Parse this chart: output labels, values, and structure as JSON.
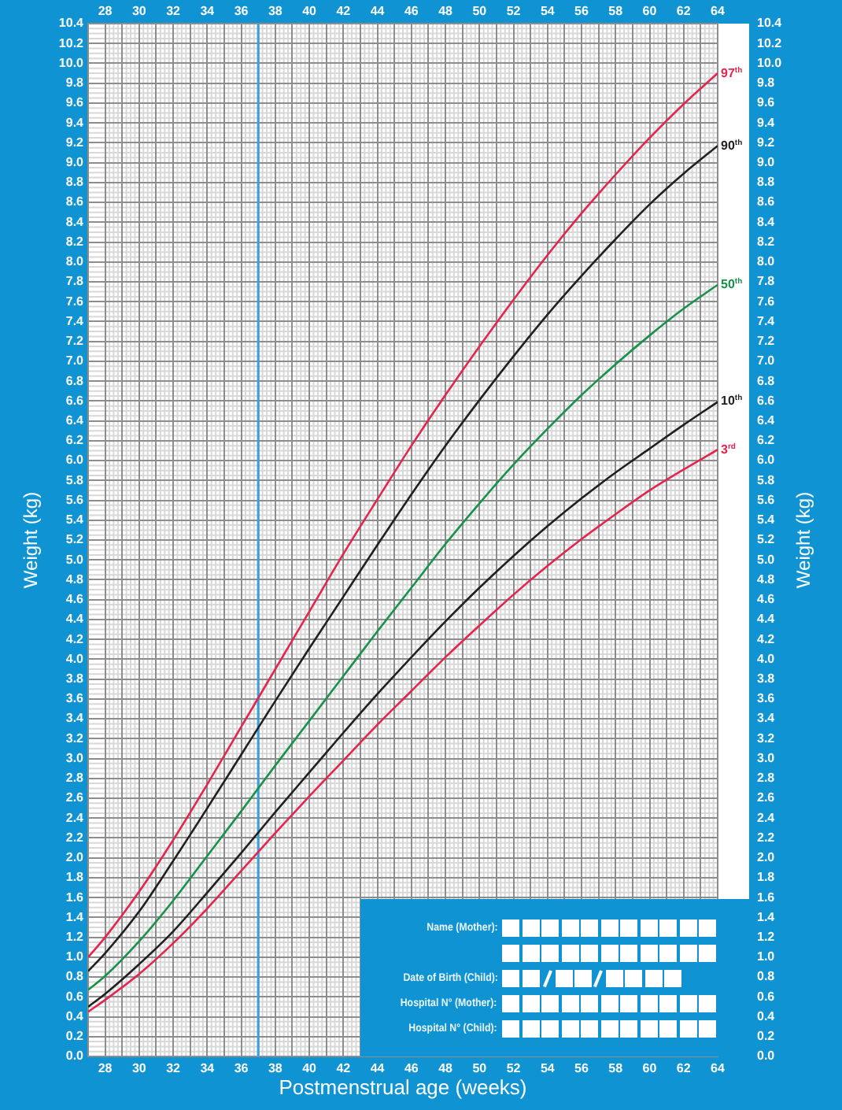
{
  "chart_data": {
    "type": "line",
    "xlabel": "Postmenstrual age (weeks)",
    "ylabel": "Weight (kg)",
    "y2label": "Weight (kg)",
    "x": [
      27,
      28,
      30,
      32,
      34,
      36,
      38,
      40,
      42,
      44,
      46,
      48,
      50,
      52,
      54,
      56,
      58,
      60,
      62,
      64
    ],
    "series": [
      {
        "name": "97$^{th}$",
        "color": "#e4254e",
        "values": [
          1.0,
          1.2,
          1.66,
          2.18,
          2.74,
          3.32,
          3.9,
          4.48,
          5.06,
          5.61,
          6.15,
          6.66,
          7.15,
          7.62,
          8.07,
          8.49,
          8.88,
          9.25,
          9.59,
          9.9
        ]
      },
      {
        "name": "90$^{th}$",
        "color": "#231f20",
        "values": [
          0.86,
          1.04,
          1.46,
          1.97,
          2.5,
          3.04,
          3.58,
          4.11,
          4.63,
          5.15,
          5.66,
          6.15,
          6.61,
          7.05,
          7.47,
          7.86,
          8.23,
          8.58,
          8.89,
          9.17
        ]
      },
      {
        "name": "50$^{th}$",
        "color": "#17924a",
        "values": [
          0.67,
          0.81,
          1.16,
          1.57,
          2.02,
          2.47,
          2.93,
          3.38,
          3.83,
          4.28,
          4.72,
          5.16,
          5.57,
          5.96,
          6.32,
          6.66,
          6.97,
          7.26,
          7.53,
          7.77
        ]
      },
      {
        "name": "10$^{th}$",
        "color": "#231f20",
        "values": [
          0.5,
          0.63,
          0.93,
          1.26,
          1.65,
          2.05,
          2.46,
          2.86,
          3.26,
          3.65,
          4.02,
          4.38,
          4.72,
          5.04,
          5.34,
          5.62,
          5.88,
          6.12,
          6.36,
          6.59
        ]
      },
      {
        "name": "3$^{rd}$",
        "color": "#e4254e",
        "values": [
          0.45,
          0.57,
          0.83,
          1.14,
          1.49,
          1.87,
          2.25,
          2.62,
          2.98,
          3.34,
          3.68,
          4.02,
          4.34,
          4.65,
          4.94,
          5.21,
          5.46,
          5.7,
          5.91,
          6.11
        ]
      }
    ],
    "xlim": [
      27,
      64
    ],
    "xticks": [
      28,
      {
        "value": 29,
        "label": null
      },
      30,
      {
        "value": 31,
        "label": null
      },
      32,
      {
        "value": 33,
        "label": null
      },
      34,
      {
        "value": 35,
        "label": null
      },
      36,
      {
        "value": 37,
        "label": null
      },
      38,
      {
        "value": 39,
        "label": null
      },
      40,
      {
        "value": 41,
        "label": null
      },
      42,
      {
        "value": 43,
        "label": null
      },
      44,
      {
        "value": 45,
        "label": null
      },
      46,
      {
        "value": 47,
        "label": null
      },
      48,
      {
        "value": 49,
        "label": null
      },
      50,
      {
        "value": 51,
        "label": null
      },
      52,
      {
        "value": 53,
        "label": null
      },
      54,
      {
        "value": 55,
        "label": null
      },
      56,
      {
        "value": 57,
        "label": null
      },
      58,
      {
        "value": 59,
        "label": null
      },
      60,
      {
        "value": 61,
        "label": null
      },
      62,
      {
        "value": 63,
        "label": null
      },
      64
    ],
    "x2lim": [
      27,
      64
    ],
    "x2ticks": [
      28,
      30,
      32,
      34,
      36,
      38,
      40,
      42,
      44,
      46,
      48,
      50,
      52,
      54,
      56,
      58,
      60,
      62,
      64
    ],
    "ylim": [
      0,
      10.4
    ],
    "yticks": [
      {
        "value": 0,
        "label": "0.0"
      },
      0.2,
      0.4,
      0.6,
      0.8,
      {
        "value": 1,
        "label": "1.0"
      },
      1.2,
      1.4,
      1.6,
      1.8,
      {
        "value": 2,
        "label": "2.0"
      },
      2.2,
      2.4,
      2.6,
      2.8,
      {
        "value": 3,
        "label": "3.0"
      },
      3.2,
      3.4,
      3.6,
      3.8,
      {
        "value": 4,
        "label": "4.0"
      },
      4.2,
      4.4,
      4.6,
      4.8,
      {
        "value": 5,
        "label": "5.0"
      },
      5.2,
      5.4,
      5.6,
      5.8,
      {
        "value": 6,
        "label": "6.0"
      },
      6.2,
      6.4,
      6.6,
      6.8,
      {
        "value": 7,
        "label": "7.0"
      },
      7.2,
      7.4,
      7.6,
      7.8,
      {
        "value": 8,
        "label": "8.0"
      },
      8.2,
      8.4,
      8.6,
      8.8,
      {
        "value": 9,
        "label": "9.0"
      },
      9.2,
      9.4,
      9.6,
      9.8,
      {
        "value": 10,
        "label": "10.0"
      },
      10.2,
      10.4
    ],
    "y2lim": [
      0,
      10.4
    ],
    "y2ticks": [
      {
        "value": 0,
        "label": "0.0"
      },
      0.2,
      0.4,
      0.6,
      0.8,
      {
        "value": 1,
        "label": "1.0"
      },
      1.2,
      1.4,
      1.6,
      1.8,
      {
        "value": 2,
        "label": "2.0"
      },
      2.2,
      2.4,
      2.6,
      2.8,
      {
        "value": 3,
        "label": "3.0"
      },
      3.2,
      3.4,
      3.6,
      3.8,
      {
        "value": 4,
        "label": "4.0"
      },
      4.2,
      4.4,
      4.6,
      4.8,
      {
        "value": 5,
        "label": "5.0"
      },
      5.2,
      5.4,
      5.6,
      5.8,
      {
        "value": 6,
        "label": "6.0"
      },
      6.2,
      6.4,
      6.6,
      6.8,
      {
        "value": 7,
        "label": "7.0"
      },
      7.2,
      7.4,
      7.6,
      7.8,
      {
        "value": 8,
        "label": "8.0"
      },
      8.2,
      8.4,
      8.6,
      8.8,
      {
        "value": 9,
        "label": "9.0"
      },
      9.2,
      9.4,
      9.6,
      9.8,
      {
        "value": 10,
        "label": "10.0"
      },
      10.2,
      10.4
    ],
    "grid": true,
    "marker": "none",
    "line_style": "solid",
    "ref_lines": [
      {
        "axis": "x",
        "value": 37,
        "color": "#3d9ed8"
      }
    ],
    "annotations": [
      "Name (Mother):",
      "Date of Birth (Child):",
      "Hospital N° (Mother):",
      "Hospital N° (Child):"
    ]
  }
}
